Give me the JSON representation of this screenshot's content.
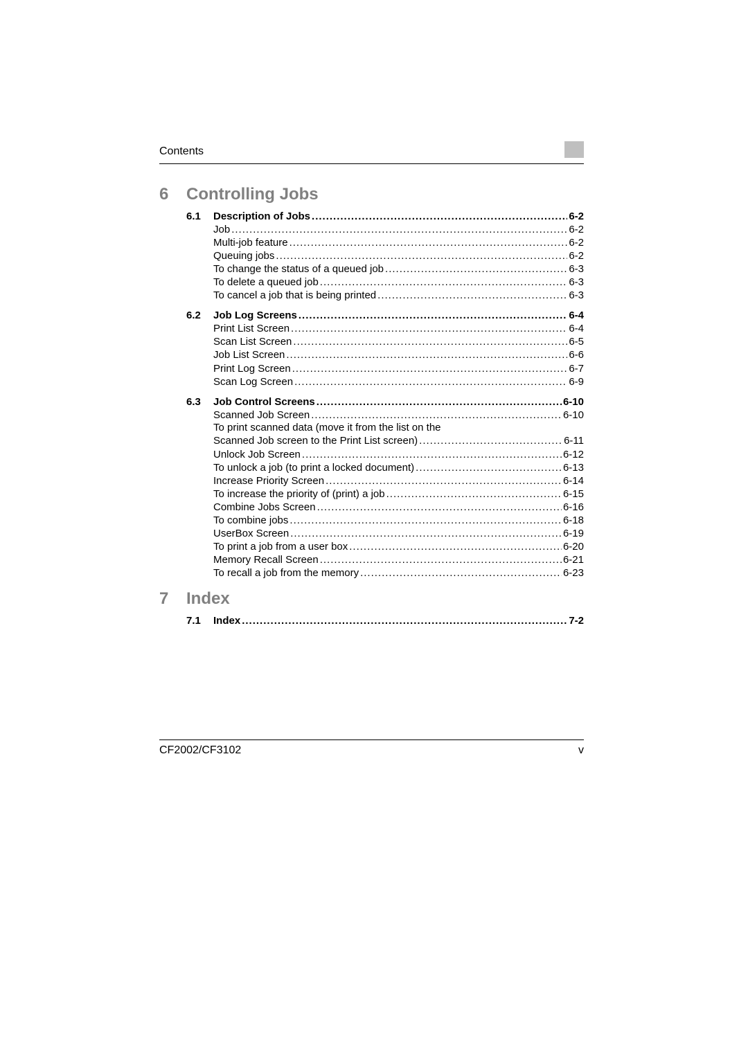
{
  "header": {
    "label": "Contents"
  },
  "footer": {
    "left": "CF2002/CF3102",
    "right": "v"
  },
  "leader_pattern": "........................................................................................................................................................................",
  "chapters": [
    {
      "num": "6",
      "title": "Controlling Jobs",
      "sections": [
        {
          "num": "6.1",
          "title": "Description of Jobs",
          "page": "6-2",
          "entries": [
            {
              "label": "Job",
              "page": "6-2"
            },
            {
              "label": "Multi-job feature",
              "page": "6-2"
            },
            {
              "label": "Queuing jobs",
              "page": "6-2"
            },
            {
              "label": "To change the status of a queued job",
              "page": "6-3"
            },
            {
              "label": "To delete a queued job",
              "page": "6-3"
            },
            {
              "label": "To cancel a job that is being printed",
              "page": "6-3"
            }
          ]
        },
        {
          "num": "6.2",
          "title": "Job Log Screens",
          "page": "6-4",
          "entries": [
            {
              "label": "Print List Screen",
              "page": "6-4"
            },
            {
              "label": "Scan List Screen",
              "page": "6-5"
            },
            {
              "label": "Job List Screen",
              "page": "6-6"
            },
            {
              "label": "Print Log Screen",
              "page": "6-7"
            },
            {
              "label": "Scan Log Screen",
              "page": "6-9"
            }
          ]
        },
        {
          "num": "6.3",
          "title": "Job Control Screens",
          "page": "6-10",
          "entries": [
            {
              "label": "Scanned Job Screen",
              "page": "6-10"
            },
            {
              "textonly": "To print scanned data (move it from the list on the"
            },
            {
              "label": "Scanned Job screen to the Print List screen)",
              "page": "6-11"
            },
            {
              "label": "Unlock Job Screen",
              "page": "6-12"
            },
            {
              "label": "To unlock a job (to print a locked document)",
              "page": "6-13"
            },
            {
              "label": "Increase Priority Screen",
              "page": "6-14"
            },
            {
              "label": "To increase the priority of (print) a job",
              "page": "6-15"
            },
            {
              "label": "Combine Jobs Screen",
              "page": "6-16"
            },
            {
              "label": "To combine jobs",
              "page": "6-18"
            },
            {
              "label": "UserBox Screen",
              "page": "6-19"
            },
            {
              "label": "To print a job from a user box",
              "page": "6-20"
            },
            {
              "label": "Memory Recall Screen",
              "page": "6-21"
            },
            {
              "label": "To recall a job from the memory",
              "page": "6-23"
            }
          ]
        }
      ]
    },
    {
      "num": "7",
      "title": "Index",
      "sections": [
        {
          "num": "7.1",
          "title": "Index",
          "page": "7-2",
          "entries": []
        }
      ]
    }
  ]
}
